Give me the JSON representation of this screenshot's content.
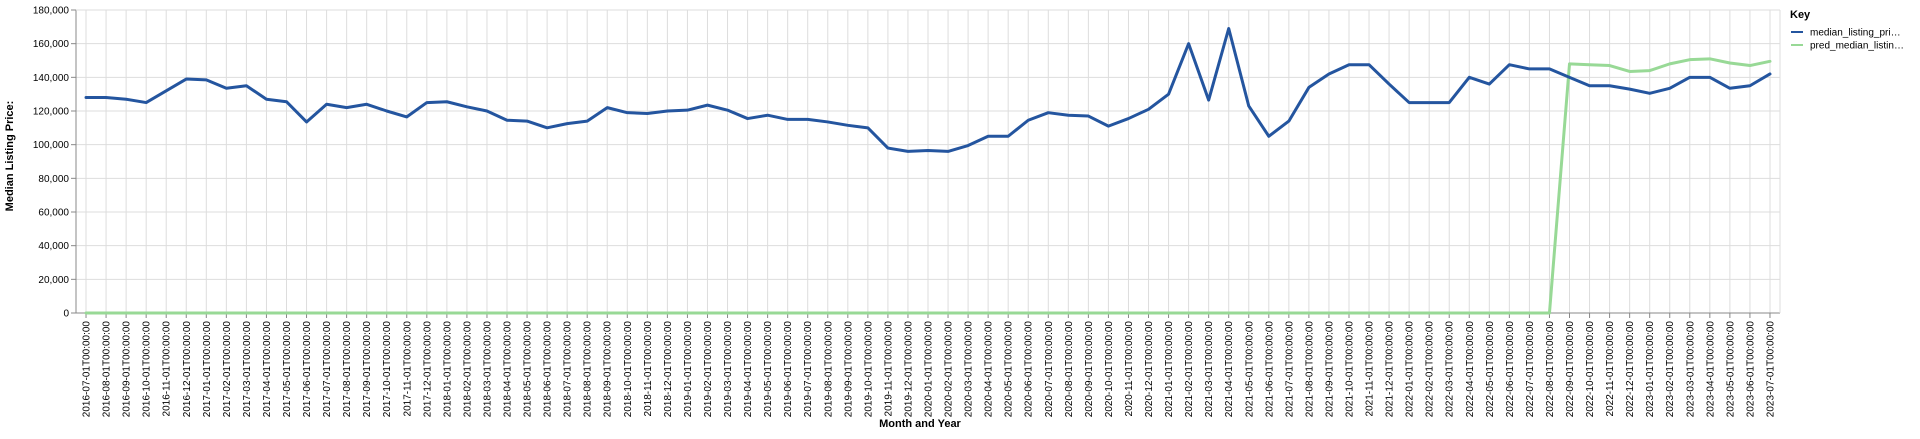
{
  "chart_data": {
    "type": "line",
    "xlabel": "Month and Year",
    "ylabel": "Median Listing Price:",
    "ylim": [
      0,
      180000
    ],
    "yticks": [
      "0",
      "20,000",
      "40,000",
      "60,000",
      "80,000",
      "100,000",
      "120,000",
      "140,000",
      "160,000",
      "180,000"
    ],
    "ytick_values": [
      0,
      20000,
      40000,
      60000,
      80000,
      100000,
      120000,
      140000,
      160000,
      180000
    ],
    "grid": true,
    "legend": {
      "title": "Key",
      "position": "top-right",
      "entries": [
        "median_listing_pri…",
        "pred_median_listin…"
      ]
    },
    "colors": {
      "median_listing_price": "#24559f",
      "pred_median_listing_price": "#98d996"
    },
    "categories": [
      "2016-07-01T00:00:00",
      "2016-08-01T00:00:00",
      "2016-09-01T00:00:00",
      "2016-10-01T00:00:00",
      "2016-11-01T00:00:00",
      "2016-12-01T00:00:00",
      "2017-01-01T00:00:00",
      "2017-02-01T00:00:00",
      "2017-03-01T00:00:00",
      "2017-04-01T00:00:00",
      "2017-05-01T00:00:00",
      "2017-06-01T00:00:00",
      "2017-07-01T00:00:00",
      "2017-08-01T00:00:00",
      "2017-09-01T00:00:00",
      "2017-10-01T00:00:00",
      "2017-11-01T00:00:00",
      "2017-12-01T00:00:00",
      "2018-01-01T00:00:00",
      "2018-02-01T00:00:00",
      "2018-03-01T00:00:00",
      "2018-04-01T00:00:00",
      "2018-05-01T00:00:00",
      "2018-06-01T00:00:00",
      "2018-07-01T00:00:00",
      "2018-08-01T00:00:00",
      "2018-09-01T00:00:00",
      "2018-10-01T00:00:00",
      "2018-11-01T00:00:00",
      "2018-12-01T00:00:00",
      "2019-01-01T00:00:00",
      "2019-02-01T00:00:00",
      "2019-03-01T00:00:00",
      "2019-04-01T00:00:00",
      "2019-05-01T00:00:00",
      "2019-06-01T00:00:00",
      "2019-07-01T00:00:00",
      "2019-08-01T00:00:00",
      "2019-09-01T00:00:00",
      "2019-10-01T00:00:00",
      "2019-11-01T00:00:00",
      "2019-12-01T00:00:00",
      "2020-01-01T00:00:00",
      "2020-02-01T00:00:00",
      "2020-03-01T00:00:00",
      "2020-04-01T00:00:00",
      "2020-05-01T00:00:00",
      "2020-06-01T00:00:00",
      "2020-07-01T00:00:00",
      "2020-08-01T00:00:00",
      "2020-09-01T00:00:00",
      "2020-10-01T00:00:00",
      "2020-11-01T00:00:00",
      "2020-12-01T00:00:00",
      "2021-01-01T00:00:00",
      "2021-02-01T00:00:00",
      "2021-03-01T00:00:00",
      "2021-04-01T00:00:00",
      "2021-05-01T00:00:00",
      "2021-06-01T00:00:00",
      "2021-07-01T00:00:00",
      "2021-08-01T00:00:00",
      "2021-09-01T00:00:00",
      "2021-10-01T00:00:00",
      "2021-11-01T00:00:00",
      "2021-12-01T00:00:00",
      "2022-01-01T00:00:00",
      "2022-02-01T00:00:00",
      "2022-03-01T00:00:00",
      "2022-04-01T00:00:00",
      "2022-05-01T00:00:00",
      "2022-06-01T00:00:00",
      "2022-07-01T00:00:00",
      "2022-08-01T00:00:00",
      "2022-09-01T00:00:00",
      "2022-10-01T00:00:00",
      "2022-11-01T00:00:00",
      "2022-12-01T00:00:00",
      "2023-01-01T00:00:00",
      "2023-02-01T00:00:00",
      "2023-03-01T00:00:00",
      "2023-04-01T00:00:00",
      "2023-05-01T00:00:00",
      "2023-06-01T00:00:00",
      "2023-07-01T00:00:00"
    ],
    "series": [
      {
        "name": "median_listing_pri…",
        "values": [
          128000,
          128000,
          127000,
          125000,
          132000,
          139000,
          138500,
          133500,
          135000,
          127000,
          125500,
          113500,
          124000,
          122000,
          124000,
          120000,
          116500,
          125000,
          125500,
          122500,
          120000,
          114500,
          114000,
          110000,
          112500,
          114000,
          122000,
          119000,
          118500,
          120000,
          120500,
          123500,
          120500,
          115500,
          117500,
          115000,
          115000,
          113500,
          111500,
          110000,
          98000,
          96000,
          96500,
          96000,
          99500,
          105000,
          105000,
          114500,
          119000,
          117500,
          117000,
          111000,
          115500,
          121000,
          130000,
          160000,
          126500,
          169000,
          123000,
          105000,
          114000,
          134000,
          142000,
          147500,
          147500,
          136000,
          125000,
          125000,
          125000,
          140000,
          136000,
          147500,
          145000,
          145000,
          140000,
          135000,
          135000,
          133000,
          130500,
          133500,
          140000,
          140000,
          133500,
          135000,
          142000
        ]
      },
      {
        "name": "pred_median_listin…",
        "values": [
          0,
          0,
          0,
          0,
          0,
          0,
          0,
          0,
          0,
          0,
          0,
          0,
          0,
          0,
          0,
          0,
          0,
          0,
          0,
          0,
          0,
          0,
          0,
          0,
          0,
          0,
          0,
          0,
          0,
          0,
          0,
          0,
          0,
          0,
          0,
          0,
          0,
          0,
          0,
          0,
          0,
          0,
          0,
          0,
          0,
          0,
          0,
          0,
          0,
          0,
          0,
          0,
          0,
          0,
          0,
          0,
          0,
          0,
          0,
          0,
          0,
          0,
          0,
          0,
          0,
          0,
          0,
          0,
          0,
          0,
          0,
          0,
          0,
          0,
          148000,
          147500,
          147000,
          143500,
          144000,
          148000,
          150500,
          151000,
          148500,
          147000,
          149500
        ]
      }
    ]
  }
}
